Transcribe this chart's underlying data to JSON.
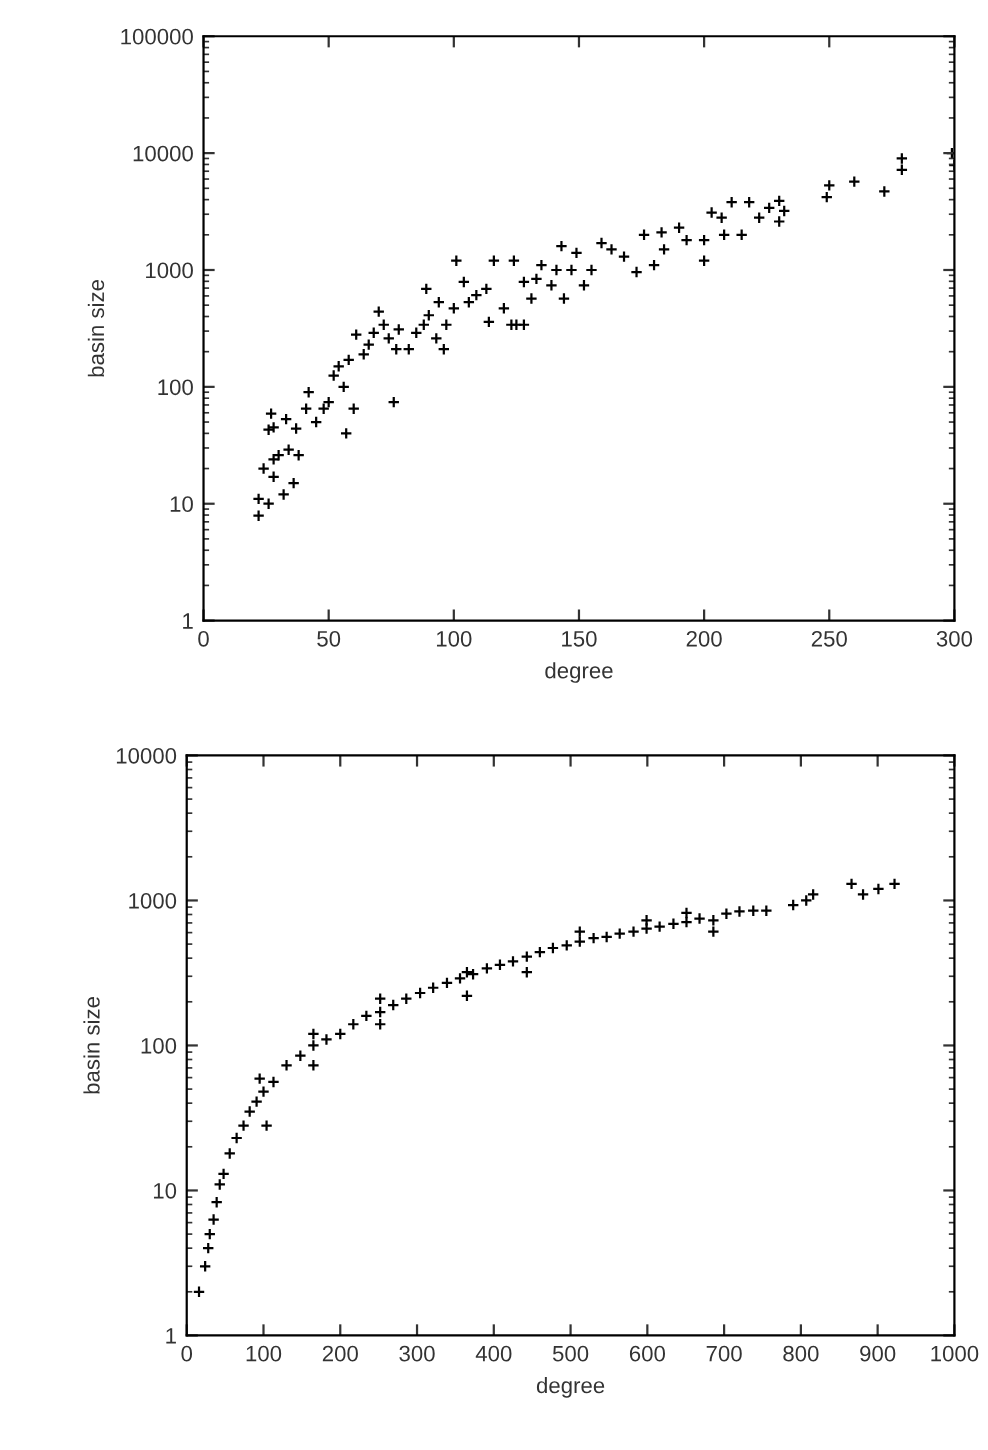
{
  "chart_data": [
    {
      "type": "scatter",
      "xlabel": "degree",
      "ylabel": "basin size",
      "log": "y",
      "marker": "cross",
      "color": "#000000",
      "xlim": [
        0,
        300
      ],
      "xticks": [
        0,
        50,
        100,
        150,
        200,
        250,
        300
      ],
      "ylim": [
        1,
        100000
      ],
      "yticks": [
        1,
        10,
        100,
        1000,
        10000,
        100000
      ],
      "x": [
        22,
        22,
        26,
        32,
        36,
        28,
        24,
        28,
        30,
        34,
        38,
        26,
        28,
        27,
        33,
        37,
        41,
        42,
        45,
        48,
        50,
        57,
        56,
        60,
        52,
        54,
        58,
        61,
        64,
        66,
        70,
        72,
        68,
        74,
        76,
        77,
        78,
        82,
        85,
        88,
        89,
        90,
        93,
        96,
        94,
        97,
        101,
        100,
        104,
        106,
        109,
        113,
        114,
        116,
        120,
        123,
        125,
        128,
        124,
        128,
        131,
        133,
        135,
        139,
        141,
        143,
        144,
        147,
        149,
        152,
        155,
        159,
        163,
        168,
        173,
        176,
        180,
        183,
        184,
        190,
        193,
        200,
        200,
        203,
        207,
        208,
        211,
        215,
        218,
        222,
        226,
        230,
        230,
        232,
        249,
        250,
        260,
        272,
        279,
        279,
        299,
        300
      ],
      "values": [
        7.9,
        11,
        10,
        12,
        15,
        17,
        20,
        24,
        26,
        29,
        26,
        43,
        45,
        59,
        53,
        44,
        65,
        90,
        50,
        65,
        74,
        40,
        100,
        65,
        125,
        150,
        170,
        280,
        190,
        230,
        440,
        340,
        290,
        260,
        74,
        210,
        310,
        210,
        290,
        340,
        690,
        410,
        260,
        210,
        530,
        340,
        1200,
        470,
        790,
        530,
        610,
        690,
        360,
        1200,
        470,
        340,
        340,
        340,
        1200,
        790,
        570,
        840,
        1100,
        740,
        1000,
        1600,
        570,
        1000,
        1400,
        740,
        1000,
        1700,
        1500,
        1300,
        960,
        2000,
        1100,
        2100,
        1500,
        2300,
        1800,
        1800,
        1200,
        3100,
        2800,
        2000,
        3800,
        2000,
        3800,
        2800,
        3400,
        3900,
        2600,
        3200,
        4200,
        5300,
        5700,
        4700,
        7200,
        9000,
        10000,
        7900
      ]
    },
    {
      "type": "scatter",
      "xlabel": "degree",
      "ylabel": "basin size",
      "log": "y",
      "marker": "cross",
      "color": "#000000",
      "xlim": [
        0,
        1000
      ],
      "xticks": [
        0,
        100,
        200,
        300,
        400,
        500,
        600,
        700,
        800,
        900,
        1000
      ],
      "ylim": [
        1,
        10000
      ],
      "yticks": [
        1,
        10,
        100,
        1000,
        10000
      ],
      "x": [
        16,
        24,
        28,
        30,
        35,
        39,
        43,
        48,
        56,
        65,
        74,
        82,
        91,
        100,
        113,
        130,
        148,
        165,
        182,
        200,
        217,
        234,
        252,
        269,
        286,
        304,
        321,
        339,
        356,
        373,
        391,
        408,
        425,
        443,
        460,
        477,
        495,
        512,
        530,
        547,
        564,
        582,
        599,
        616,
        634,
        651,
        668,
        686,
        703,
        720,
        738,
        755,
        790,
        807,
        816,
        866,
        881,
        901,
        922,
        95,
        104,
        165,
        165,
        252,
        252,
        365,
        365,
        443,
        512,
        599,
        686,
        651
      ],
      "values": [
        2,
        3,
        4,
        5,
        6.3,
        8.3,
        11,
        13,
        18,
        23,
        28,
        35,
        41,
        48,
        56,
        73,
        85,
        100,
        110,
        120,
        140,
        160,
        170,
        190,
        210,
        230,
        250,
        270,
        290,
        310,
        340,
        360,
        380,
        410,
        440,
        470,
        490,
        520,
        550,
        560,
        590,
        610,
        640,
        660,
        690,
        710,
        750,
        730,
        810,
        840,
        850,
        850,
        930,
        1000,
        1100,
        1300,
        1100,
        1200,
        1300,
        59,
        28,
        120,
        73,
        210,
        140,
        320,
        220,
        320,
        610,
        730,
        610,
        820
      ]
    }
  ]
}
